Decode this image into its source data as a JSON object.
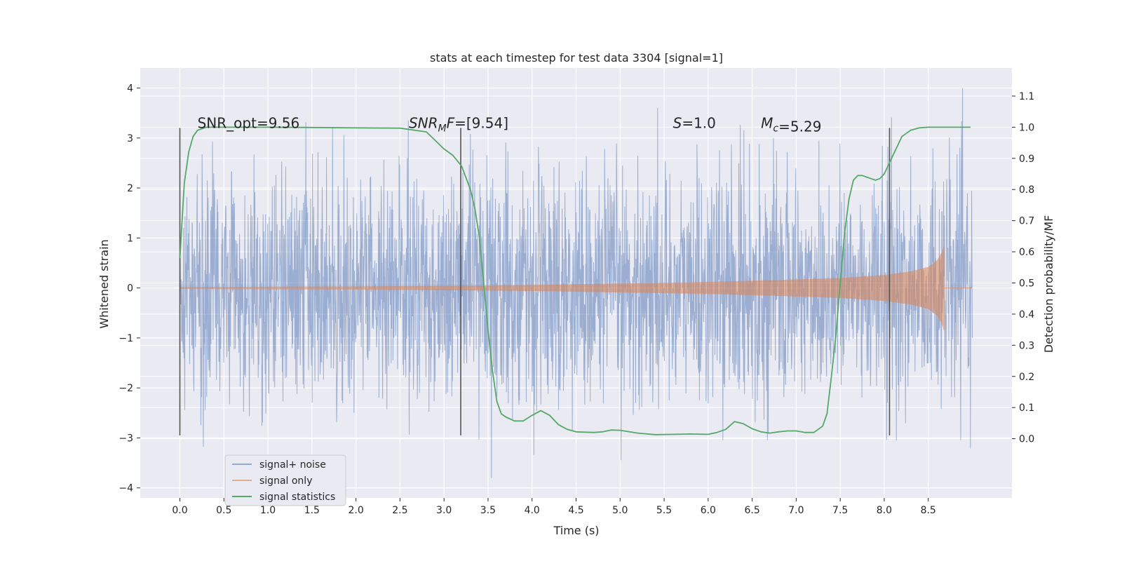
{
  "chart_data": {
    "type": "line",
    "title": "stats at each timestep for test data 3304 [signal=1]",
    "xlabel": "Time (s)",
    "ylabel_left": "Whitened strain",
    "ylabel_right": "Detection probability/MF",
    "xlim": [
      -0.45,
      9.45
    ],
    "ylim_left": [
      -4.2,
      4.4
    ],
    "ylim_right": [
      -0.19,
      1.19
    ],
    "x_ticks": [
      0.0,
      0.5,
      1.0,
      1.5,
      2.0,
      2.5,
      3.0,
      3.5,
      4.0,
      4.5,
      5.0,
      5.5,
      6.0,
      6.5,
      7.0,
      7.5,
      8.0,
      8.5
    ],
    "x_tick_labels": [
      "0.0",
      "0.5",
      "1.0",
      "1.5",
      "2.0",
      "2.5",
      "3.0",
      "3.5",
      "4.0",
      "4.5",
      "5.0",
      "5.5",
      "6.0",
      "6.5",
      "7.0",
      "7.5",
      "8.0",
      "8.5"
    ],
    "y_left_ticks": [
      4,
      3,
      2,
      1,
      0,
      -1,
      -2,
      -3,
      -4
    ],
    "y_left_tick_labels": [
      "4",
      "3",
      "2",
      "1",
      "0",
      "−1",
      "−2",
      "−3",
      "−4"
    ],
    "y_right_ticks": [
      1.1,
      1.0,
      0.9,
      0.8,
      0.7,
      0.6,
      0.5,
      0.4,
      0.3,
      0.2,
      0.1,
      0.0
    ],
    "y_right_tick_labels": [
      "1.1",
      "1.0",
      "0.9",
      "0.8",
      "0.7",
      "0.6",
      "0.5",
      "0.4",
      "0.3",
      "0.2",
      "0.1",
      "0.0"
    ],
    "grid": true,
    "legend_position": "lower-left",
    "series": [
      {
        "name": "signal+ noise",
        "axis": "left",
        "color": "#4c72b0",
        "kind": "noise",
        "x_range": [
          0.0,
          9.0
        ],
        "typical_amplitude": 1.35,
        "peak_min": -3.8,
        "peak_max": 4.0
      },
      {
        "name": "signal only",
        "axis": "left",
        "color": "#dd8452",
        "kind": "chirp",
        "x_range": [
          0.0,
          8.68
        ],
        "envelope_x": [
          0.0,
          2.0,
          4.0,
          5.0,
          6.0,
          7.0,
          7.5,
          8.0,
          8.3,
          8.5,
          8.6,
          8.65,
          8.68
        ],
        "envelope_amp": [
          0.02,
          0.03,
          0.06,
          0.09,
          0.12,
          0.17,
          0.2,
          0.26,
          0.33,
          0.42,
          0.55,
          0.7,
          0.85
        ]
      },
      {
        "name": "signal statistics",
        "axis": "right",
        "color": "#55a868",
        "kind": "line",
        "x": [
          0.0,
          0.05,
          0.1,
          0.15,
          0.2,
          0.3,
          0.5,
          1.0,
          1.5,
          2.0,
          2.5,
          2.8,
          3.0,
          3.1,
          3.2,
          3.3,
          3.35,
          3.4,
          3.45,
          3.5,
          3.55,
          3.6,
          3.65,
          3.7,
          3.8,
          3.9,
          4.0,
          4.1,
          4.2,
          4.3,
          4.4,
          4.5,
          4.6,
          4.7,
          4.8,
          4.9,
          5.0,
          5.2,
          5.4,
          5.6,
          5.8,
          6.0,
          6.1,
          6.2,
          6.3,
          6.4,
          6.5,
          6.6,
          6.7,
          6.8,
          6.9,
          7.0,
          7.1,
          7.2,
          7.3,
          7.35,
          7.4,
          7.45,
          7.5,
          7.55,
          7.6,
          7.65,
          7.7,
          7.75,
          7.8,
          7.85,
          7.9,
          7.95,
          8.0,
          8.05,
          8.1,
          8.15,
          8.2,
          8.3,
          8.4,
          8.5,
          8.6,
          8.7,
          8.8,
          8.9,
          8.98
        ],
        "y": [
          0.58,
          0.82,
          0.92,
          0.97,
          0.99,
          1.0,
          1.0,
          1.0,
          0.999,
          0.998,
          0.997,
          0.985,
          0.93,
          0.91,
          0.875,
          0.8,
          0.74,
          0.65,
          0.5,
          0.35,
          0.22,
          0.12,
          0.08,
          0.07,
          0.057,
          0.057,
          0.075,
          0.09,
          0.075,
          0.045,
          0.03,
          0.022,
          0.021,
          0.02,
          0.022,
          0.028,
          0.027,
          0.018,
          0.013,
          0.014,
          0.015,
          0.014,
          0.02,
          0.03,
          0.055,
          0.048,
          0.032,
          0.022,
          0.018,
          0.022,
          0.025,
          0.025,
          0.02,
          0.02,
          0.04,
          0.08,
          0.2,
          0.33,
          0.5,
          0.66,
          0.77,
          0.83,
          0.845,
          0.845,
          0.84,
          0.835,
          0.83,
          0.835,
          0.85,
          0.88,
          0.91,
          0.94,
          0.97,
          0.99,
          0.998,
          1.0,
          1.0,
          1.0,
          1.0,
          1.0,
          1.0
        ]
      }
    ],
    "vlines": [
      0.0,
      3.19,
      8.06
    ],
    "vline_range_left": [
      -2.95,
      3.2
    ],
    "annotations": [
      {
        "label": "SNR_opt=9.56",
        "x": 0.2,
        "y": 3.2
      },
      {
        "label": "SNR_MF=[9.54]",
        "x": 2.6,
        "y": 3.2
      },
      {
        "label": "S=1.0",
        "x": 5.6,
        "y": 3.2
      },
      {
        "label": "M_c=5.29",
        "x": 6.6,
        "y": 3.2
      }
    ]
  }
}
